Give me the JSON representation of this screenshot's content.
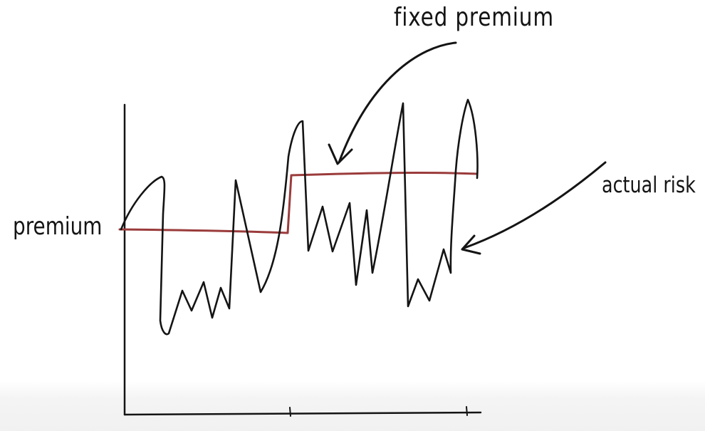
{
  "labels": {
    "fixed_premium": "fixed premium",
    "actual_risk": "actual risk",
    "premium": "premium"
  },
  "colors": {
    "ink": "#141414",
    "premium_line": "#9b3b3b"
  }
}
